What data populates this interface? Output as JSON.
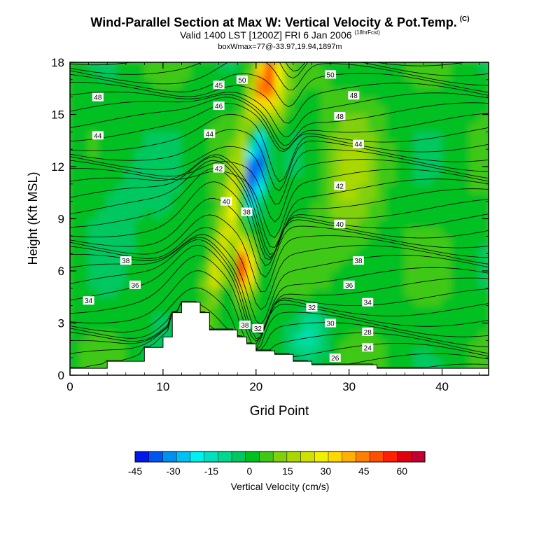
{
  "title": "Wind-Parallel Section at Max W: Vertical Velocity & Pot.Temp.",
  "copyright": "(C)",
  "subtitle_main": "Valid 1400 LST [1200Z] FRI 6 Jan 2006",
  "subtitle_forecast": "(18hrFcst)",
  "subtitle_2": "boxWmax=77@-33.97,19.94,1897m",
  "chart_data": {
    "type": "heatmap",
    "xlabel": "Grid Point",
    "ylabel": "Height (Kft MSL)",
    "xlim": [
      0,
      45
    ],
    "ylim": [
      0,
      18
    ],
    "x_ticks": [
      "0",
      "10",
      "20",
      "30",
      "40"
    ],
    "y_ticks": [
      "0",
      "3",
      "6",
      "9",
      "12",
      "15",
      "18"
    ],
    "colorbar": {
      "label": "Vertical Velocity (cm/s)",
      "tick_labels": [
        "-45",
        "-30",
        "-15",
        "0",
        "15",
        "30",
        "45",
        "60"
      ],
      "tick_values": [
        -45,
        -30,
        -15,
        0,
        15,
        30,
        45,
        60
      ],
      "range": [
        -45,
        69
      ],
      "colors": [
        "#0018e8",
        "#0054f0",
        "#0090f0",
        "#00c0f0",
        "#00f0f0",
        "#00e0c0",
        "#00d890",
        "#00c860",
        "#00c020",
        "#40c818",
        "#80d010",
        "#a8d800",
        "#d0e000",
        "#f0f000",
        "#ffd800",
        "#ffb000",
        "#ff8000",
        "#ff5000",
        "#ff2000",
        "#e00010",
        "#c00030"
      ]
    },
    "terrain": [
      [
        0,
        0.4
      ],
      [
        4,
        0.4
      ],
      [
        4,
        0.8
      ],
      [
        8,
        0.8
      ],
      [
        8,
        1.6
      ],
      [
        10,
        1.6
      ],
      [
        10,
        2.2
      ],
      [
        11,
        2.2
      ],
      [
        11,
        3.6
      ],
      [
        12,
        3.6
      ],
      [
        12,
        4.2
      ],
      [
        14,
        4.2
      ],
      [
        14,
        3.6
      ],
      [
        15,
        3.6
      ],
      [
        15,
        2.6
      ],
      [
        18,
        2.6
      ],
      [
        18,
        2.2
      ],
      [
        19,
        2.2
      ],
      [
        19,
        1.8
      ],
      [
        20,
        1.8
      ],
      [
        20,
        1.4
      ],
      [
        22,
        1.4
      ],
      [
        22,
        1.2
      ],
      [
        24,
        1.2
      ],
      [
        24,
        0.8
      ],
      [
        26,
        0.8
      ],
      [
        26,
        0.6
      ],
      [
        33,
        0.6
      ],
      [
        33,
        0.4
      ],
      [
        45,
        0.4
      ]
    ],
    "contour_labels": [
      {
        "text": "50",
        "x": 18.5,
        "y": 17.0
      },
      {
        "text": "50",
        "x": 28,
        "y": 17.3
      },
      {
        "text": "48",
        "x": 3,
        "y": 16.0
      },
      {
        "text": "48",
        "x": 30.5,
        "y": 16.1
      },
      {
        "text": "45",
        "x": 16.0,
        "y": 16.7
      },
      {
        "text": "46",
        "x": 16.0,
        "y": 15.5
      },
      {
        "text": "48",
        "x": 29,
        "y": 14.9
      },
      {
        "text": "44",
        "x": 3,
        "y": 13.8
      },
      {
        "text": "44",
        "x": 15.0,
        "y": 13.9
      },
      {
        "text": "44",
        "x": 31,
        "y": 13.3
      },
      {
        "text": "42",
        "x": 16.0,
        "y": 11.9
      },
      {
        "text": "42",
        "x": 29,
        "y": 10.9
      },
      {
        "text": "40",
        "x": 16.8,
        "y": 10.0
      },
      {
        "text": "38",
        "x": 19.0,
        "y": 9.4
      },
      {
        "text": "40",
        "x": 29,
        "y": 8.7
      },
      {
        "text": "38",
        "x": 6,
        "y": 6.6
      },
      {
        "text": "38",
        "x": 31,
        "y": 6.6
      },
      {
        "text": "36",
        "x": 7,
        "y": 5.2
      },
      {
        "text": "36",
        "x": 30,
        "y": 5.2
      },
      {
        "text": "34",
        "x": 2,
        "y": 4.3
      },
      {
        "text": "34",
        "x": 32,
        "y": 4.2
      },
      {
        "text": "32",
        "x": 26,
        "y": 3.9
      },
      {
        "text": "30",
        "x": 28,
        "y": 3.0
      },
      {
        "text": "38",
        "x": 18.8,
        "y": 2.9
      },
      {
        "text": "32",
        "x": 20.2,
        "y": 2.7
      },
      {
        "text": "28",
        "x": 32,
        "y": 2.5
      },
      {
        "text": "24",
        "x": 32,
        "y": 1.6
      },
      {
        "text": "26",
        "x": 28.5,
        "y": 1.0
      }
    ]
  }
}
